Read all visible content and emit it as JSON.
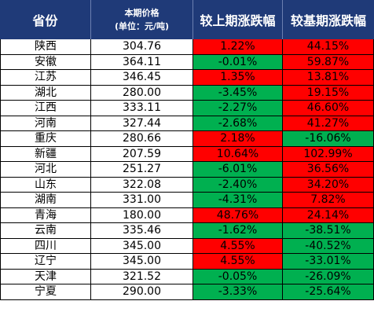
{
  "colors": {
    "header_bg": "#1f3a78",
    "up": "#ff0000",
    "down": "#00b050"
  },
  "headers": {
    "province": "省份",
    "price_line1": "本期价格",
    "price_line2": "(单位：元/吨)",
    "mom": "较上期涨跌幅",
    "yoy": "较基期涨跌幅"
  },
  "rows": [
    {
      "province": "陕西",
      "price": "304.76",
      "mom": "1.22%",
      "mom_dir": "up",
      "yoy": "44.15%",
      "yoy_dir": "up"
    },
    {
      "province": "安徽",
      "price": "364.11",
      "mom": "-0.01%",
      "mom_dir": "down",
      "yoy": "59.87%",
      "yoy_dir": "up"
    },
    {
      "province": "江苏",
      "price": "346.45",
      "mom": "1.35%",
      "mom_dir": "up",
      "yoy": "13.81%",
      "yoy_dir": "up"
    },
    {
      "province": "湖北",
      "price": "280.00",
      "mom": "-3.45%",
      "mom_dir": "down",
      "yoy": "19.15%",
      "yoy_dir": "up"
    },
    {
      "province": "江西",
      "price": "333.11",
      "mom": "-2.27%",
      "mom_dir": "down",
      "yoy": "46.60%",
      "yoy_dir": "up"
    },
    {
      "province": "河南",
      "price": "327.44",
      "mom": "-2.68%",
      "mom_dir": "down",
      "yoy": "41.27%",
      "yoy_dir": "up"
    },
    {
      "province": "重庆",
      "price": "280.66",
      "mom": "2.18%",
      "mom_dir": "up",
      "yoy": "-16.06%",
      "yoy_dir": "down"
    },
    {
      "province": "新疆",
      "price": "207.59",
      "mom": "10.64%",
      "mom_dir": "up",
      "yoy": "102.99%",
      "yoy_dir": "up"
    },
    {
      "province": "河北",
      "price": "251.27",
      "mom": "-6.01%",
      "mom_dir": "down",
      "yoy": "36.56%",
      "yoy_dir": "up"
    },
    {
      "province": "山东",
      "price": "322.08",
      "mom": "-2.40%",
      "mom_dir": "down",
      "yoy": "34.20%",
      "yoy_dir": "up"
    },
    {
      "province": "湖南",
      "price": "331.00",
      "mom": "-4.31%",
      "mom_dir": "down",
      "yoy": "7.82%",
      "yoy_dir": "up"
    },
    {
      "province": "青海",
      "price": "180.00",
      "mom": "48.76%",
      "mom_dir": "up",
      "yoy": "24.14%",
      "yoy_dir": "up"
    },
    {
      "province": "云南",
      "price": "335.46",
      "mom": "-1.62%",
      "mom_dir": "down",
      "yoy": "-38.51%",
      "yoy_dir": "down"
    },
    {
      "province": "四川",
      "price": "345.00",
      "mom": "4.55%",
      "mom_dir": "up",
      "yoy": "-40.52%",
      "yoy_dir": "down"
    },
    {
      "province": "辽宁",
      "price": "345.00",
      "mom": "4.55%",
      "mom_dir": "up",
      "yoy": "-33.01%",
      "yoy_dir": "down"
    },
    {
      "province": "天津",
      "price": "321.52",
      "mom": "-0.05%",
      "mom_dir": "down",
      "yoy": "-26.09%",
      "yoy_dir": "down"
    },
    {
      "province": "宁夏",
      "price": "290.00",
      "mom": "-3.33%",
      "mom_dir": "down",
      "yoy": "-25.64%",
      "yoy_dir": "down"
    }
  ]
}
